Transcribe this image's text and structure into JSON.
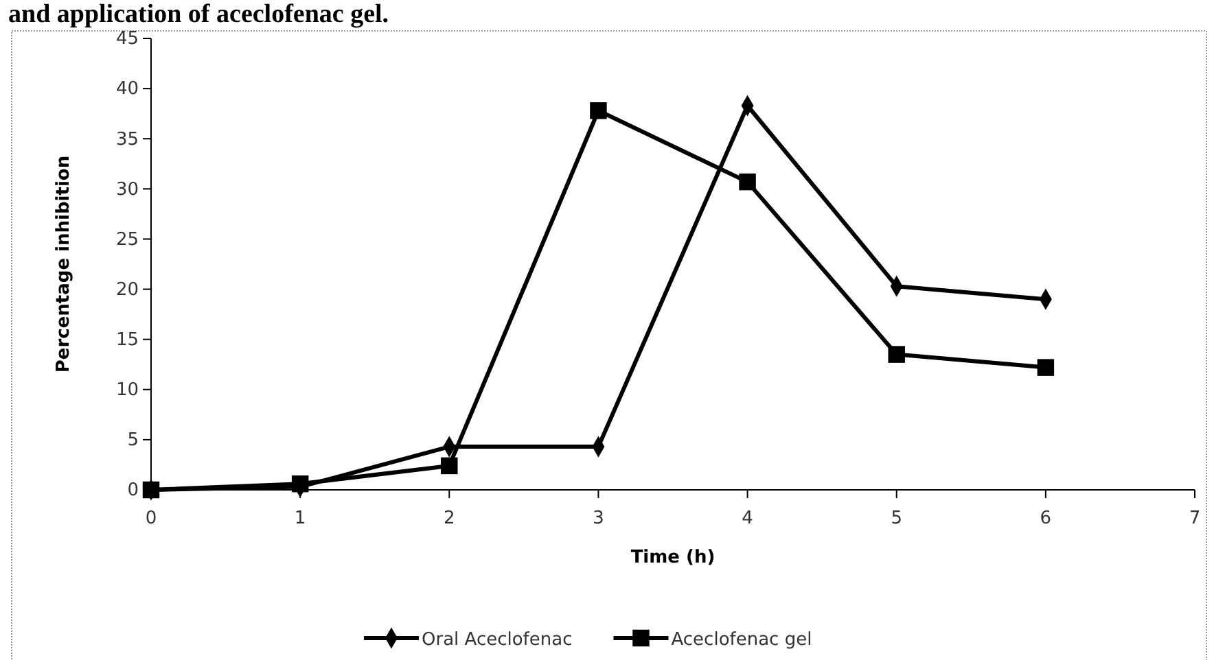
{
  "chart_data": {
    "type": "line",
    "title": "and application of aceclofenac gel.",
    "xlabel": "Time (h)",
    "ylabel": "Percentage inhibition",
    "x": [
      0,
      1,
      2,
      3,
      4,
      5,
      6
    ],
    "series": [
      {
        "name": "Oral Aceclofenac",
        "color": "#000000",
        "marker": "diamond",
        "values": [
          0,
          0.3,
          4.3,
          4.3,
          38.3,
          20.3,
          19.0
        ]
      },
      {
        "name": "Aceclofenac gel",
        "color": "#000000",
        "marker": "square",
        "values": [
          0,
          0.6,
          2.4,
          37.8,
          30.7,
          13.5,
          12.2
        ]
      }
    ],
    "xlim": [
      0,
      7
    ],
    "xticks": [
      0,
      1,
      2,
      3,
      4,
      5,
      6,
      7
    ],
    "ylim": [
      0,
      45
    ],
    "yticks": [
      0,
      5,
      10,
      15,
      20,
      25,
      30,
      35,
      40,
      45
    ],
    "grid": false,
    "legend": "bottom",
    "line_style": "solid"
  }
}
